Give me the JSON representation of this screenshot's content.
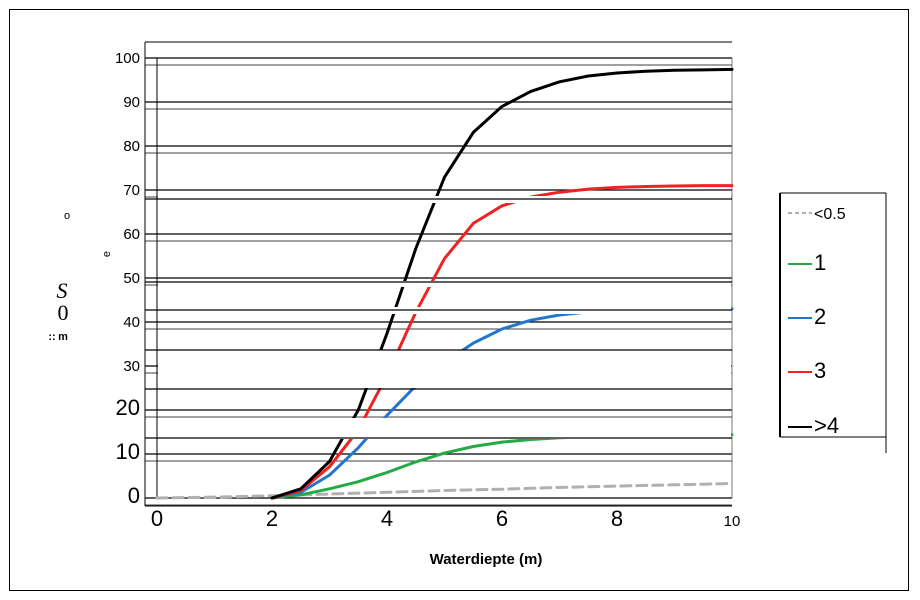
{
  "chart_data": {
    "type": "line",
    "title": "",
    "xlabel": "Waterdiepte (m)",
    "ylabel": "",
    "y_label_fragments": [
      "o",
      "e",
      "S",
      "0",
      "m",
      "::"
    ],
    "xlim": [
      0,
      10
    ],
    "ylim": [
      0,
      100
    ],
    "x_ticks": [
      0,
      2,
      4,
      6,
      8,
      10
    ],
    "x_tick_labels": [
      "0",
      "2",
      "4",
      "6",
      "8",
      "10"
    ],
    "y_ticks": [
      0,
      10,
      20,
      30,
      40,
      50,
      60,
      70,
      80,
      90,
      100
    ],
    "y_tick_labels": [
      "0",
      "10",
      "20",
      "30",
      "40",
      "50",
      "60",
      "70",
      "80",
      "90",
      "100"
    ],
    "grid": "horizontal",
    "legend_position": "right",
    "series": [
      {
        "name": "<0.5",
        "color": "#b0b0b0",
        "style": "dashed",
        "x": [
          0,
          1,
          2,
          3,
          4,
          5,
          6,
          7,
          8,
          9,
          10
        ],
        "y": [
          0.0,
          0.2,
          0.5,
          0.9,
          1.3,
          1.7,
          2.0,
          2.4,
          2.7,
          3.0,
          3.3
        ]
      },
      {
        "name": "1",
        "color": "#22aa44",
        "style": "solid",
        "x": [
          2.0,
          2.5,
          3.0,
          3.5,
          4.0,
          4.5,
          5.0,
          5.5,
          6.0,
          6.5,
          7.0,
          8.0,
          9.0,
          10.0
        ],
        "y": [
          0.0,
          0.7,
          2.1,
          3.7,
          5.8,
          8.2,
          10.2,
          11.7,
          12.7,
          13.3,
          13.7,
          14.1,
          14.3,
          14.4
        ]
      },
      {
        "name": "2",
        "color": "#2277cc",
        "style": "solid",
        "x": [
          2.0,
          2.5,
          3.0,
          3.5,
          4.0,
          4.5,
          5.0,
          5.5,
          6.0,
          6.5,
          7.0,
          7.5,
          8.0,
          8.5,
          9.0,
          10.0
        ],
        "y": [
          0.0,
          1.3,
          5.2,
          11.4,
          18.8,
          25.5,
          30.8,
          35.2,
          38.4,
          40.4,
          41.6,
          42.3,
          42.6,
          42.8,
          42.9,
          43.0
        ]
      },
      {
        "name": "3",
        "color": "#ee2222",
        "style": "solid",
        "x": [
          2.0,
          2.5,
          3.0,
          3.5,
          4.0,
          4.5,
          5.0,
          5.5,
          6.0,
          6.5,
          7.0,
          7.5,
          8.0,
          8.5,
          9.0,
          9.5,
          10.0
        ],
        "y": [
          0.0,
          1.7,
          7.1,
          15.5,
          27.9,
          42.2,
          54.4,
          62.4,
          66.4,
          68.4,
          69.5,
          70.2,
          70.6,
          70.8,
          70.9,
          71.0,
          71.0
        ]
      },
      {
        "name": ">4",
        "color": "#000000",
        "style": "solid",
        "x": [
          2.0,
          2.5,
          3.0,
          3.5,
          4.0,
          4.5,
          5.0,
          5.5,
          6.0,
          6.5,
          7.0,
          7.5,
          8.0,
          8.5,
          9.0,
          9.5,
          10.0
        ],
        "y": [
          0.0,
          2.1,
          8.3,
          20.0,
          37.4,
          56.7,
          72.9,
          83.1,
          89.0,
          92.4,
          94.6,
          95.9,
          96.6,
          97.0,
          97.2,
          97.3,
          97.4
        ]
      }
    ],
    "legend_entries": [
      {
        "label": "<0.5",
        "color": "#b0b0b0",
        "style": "dashed"
      },
      {
        "label": "1",
        "color": "#22aa44",
        "style": "solid"
      },
      {
        "label": "2",
        "color": "#2277cc",
        "style": "solid"
      },
      {
        "label": "3",
        "color": "#ee2222",
        "style": "solid"
      },
      {
        "label": ">4",
        "color": "#000000",
        "style": "solid"
      }
    ]
  }
}
